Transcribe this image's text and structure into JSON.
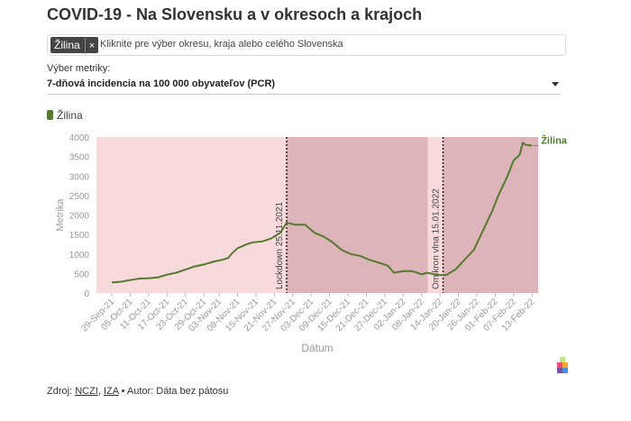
{
  "header": {
    "title": "COVID-19 - Na Slovensku a v okresoch a krajoch"
  },
  "filter": {
    "tag": "Žilina",
    "remove": "×",
    "placeholder": "Kliknite pre výber okresu, kraja alebo celého Slovenska"
  },
  "metric": {
    "label": "Výber metriky:",
    "selected": "7-dňová incidencia na 100 000 obyvateľov (PCR)"
  },
  "chart_data": {
    "type": "line",
    "xlabel": "Dátum",
    "ylabel": "Metrika",
    "xlim": [
      "2021-09-24",
      "2022-02-15"
    ],
    "ylim": [
      0,
      4000
    ],
    "yticks": [
      0,
      500,
      1000,
      1500,
      2000,
      2500,
      3000,
      3500,
      4000
    ],
    "xticks": [
      {
        "value": "2021-09-29",
        "label": "29-Sep-21"
      },
      {
        "value": "2021-10-05",
        "label": "05-Oct-21"
      },
      {
        "value": "2021-10-11",
        "label": "11-Oct-21"
      },
      {
        "value": "2021-10-17",
        "label": "17-Oct-21"
      },
      {
        "value": "2021-10-23",
        "label": "23-Oct-21"
      },
      {
        "value": "2021-10-29",
        "label": "29-Oct-21"
      },
      {
        "value": "2021-11-03",
        "label": "03-Nov-21"
      },
      {
        "value": "2021-11-09",
        "label": "09-Nov-21"
      },
      {
        "value": "2021-11-15",
        "label": "15-Nov-21"
      },
      {
        "value": "2021-11-21",
        "label": "21-Nov-21"
      },
      {
        "value": "2021-11-27",
        "label": "27-Nov-21"
      },
      {
        "value": "2021-12-03",
        "label": "03-Dec-21"
      },
      {
        "value": "2021-12-09",
        "label": "09-Dec-21"
      },
      {
        "value": "2021-12-15",
        "label": "15-Dec-21"
      },
      {
        "value": "2021-12-21",
        "label": "21-Dec-21"
      },
      {
        "value": "2021-12-27",
        "label": "27-Dec-21"
      },
      {
        "value": "2022-01-02",
        "label": "02-Jan-22"
      },
      {
        "value": "2022-01-08",
        "label": "08-Jan-22"
      },
      {
        "value": "2022-01-14",
        "label": "14-Jan-22"
      },
      {
        "value": "2022-01-20",
        "label": "20-Jan-22"
      },
      {
        "value": "2022-01-26",
        "label": "26-Jan-22"
      },
      {
        "value": "2022-02-01",
        "label": "01-Feb-22"
      },
      {
        "value": "2022-02-07",
        "label": "07-Feb-22"
      },
      {
        "value": "2022-02-13",
        "label": "13-Feb-22"
      }
    ],
    "grid": false,
    "background": "#f8dadd",
    "regions": [
      {
        "start": "2021-11-25",
        "end": "2022-01-10",
        "color": "#dcb4b9"
      },
      {
        "start": "2022-01-15",
        "end": "2022-02-15",
        "color": "#dcb4b9"
      }
    ],
    "annotations": [
      {
        "x": "2021-11-25",
        "text": "Lockdown 25.11.2021"
      },
      {
        "x": "2022-01-15",
        "text": "Omikron vlna 15.01.2022"
      }
    ],
    "series": [
      {
        "name": "Žilina",
        "color": "#557a2f",
        "x": [
          "2021-09-29",
          "2021-10-02",
          "2021-10-05",
          "2021-10-08",
          "2021-10-11",
          "2021-10-14",
          "2021-10-17",
          "2021-10-20",
          "2021-10-23",
          "2021-10-26",
          "2021-10-29",
          "2021-11-01",
          "2021-11-04",
          "2021-11-06",
          "2021-11-07",
          "2021-11-09",
          "2021-11-12",
          "2021-11-14",
          "2021-11-17",
          "2021-11-20",
          "2021-11-23",
          "2021-11-25",
          "2021-11-28",
          "2021-12-01",
          "2021-12-04",
          "2021-12-07",
          "2021-12-10",
          "2021-12-13",
          "2021-12-16",
          "2021-12-19",
          "2021-12-22",
          "2021-12-25",
          "2021-12-28",
          "2021-12-30",
          "2022-01-02",
          "2022-01-05",
          "2022-01-08",
          "2022-01-10",
          "2022-01-13",
          "2022-01-16",
          "2022-01-19",
          "2022-01-22",
          "2022-01-25",
          "2022-01-28",
          "2022-01-31",
          "2022-02-02",
          "2022-02-05",
          "2022-02-07",
          "2022-02-09",
          "2022-02-10",
          "2022-02-11",
          "2022-02-13"
        ],
        "values": [
          270,
          290,
          330,
          370,
          380,
          400,
          470,
          520,
          600,
          680,
          730,
          800,
          850,
          900,
          1000,
          1150,
          1250,
          1300,
          1320,
          1400,
          1550,
          1800,
          1750,
          1750,
          1550,
          1450,
          1300,
          1100,
          1000,
          950,
          850,
          780,
          700,
          520,
          560,
          560,
          480,
          520,
          460,
          460,
          600,
          850,
          1100,
          1600,
          2100,
          2500,
          3000,
          3400,
          3550,
          3850,
          3800,
          3780
        ]
      }
    ]
  },
  "footer": {
    "prefix": "Zdroj:",
    "sources": [
      "NCZI",
      "IZA"
    ],
    "separator": ",",
    "author": "• Autor: Dáta bez pátosu"
  }
}
